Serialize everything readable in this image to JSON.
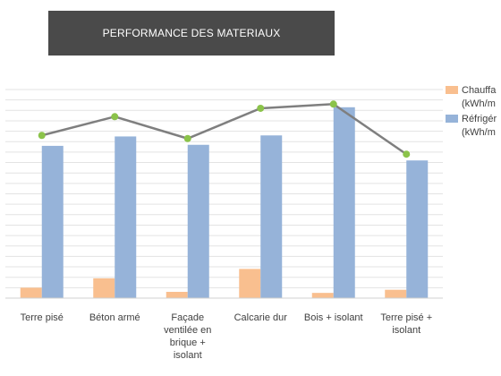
{
  "chart_data": {
    "type": "bar",
    "title": "PERFORMANCE DES MATERIAUX",
    "categories": [
      [
        "Terre pisé"
      ],
      [
        "Béton armé"
      ],
      [
        "Façade",
        "ventilée en",
        "brique +",
        "isolant"
      ],
      [
        "Calcarie dur"
      ],
      [
        "Bois + isolant"
      ],
      [
        "Terre pisé +",
        "isolant"
      ]
    ],
    "ylim": [
      0,
      100
    ],
    "grid": true,
    "legend_position": "right",
    "series": [
      {
        "name_lines": [
          "Chauffa",
          "(kWh/m"
        ],
        "kind": "bar",
        "color": "#f9bf8f",
        "values": [
          5,
          9.5,
          3,
          14,
          2.5,
          4
        ]
      },
      {
        "name_lines": [
          "Réfrigér",
          "(kWh/m"
        ],
        "kind": "bar",
        "color": "#96b3d9",
        "values": [
          73,
          77.5,
          73.5,
          78,
          91.5,
          66
        ]
      },
      {
        "kind": "line",
        "color": "#7f7f7f",
        "marker_color": "#8bc34a",
        "values": [
          78,
          87,
          76.5,
          91,
          93,
          69
        ]
      }
    ]
  }
}
